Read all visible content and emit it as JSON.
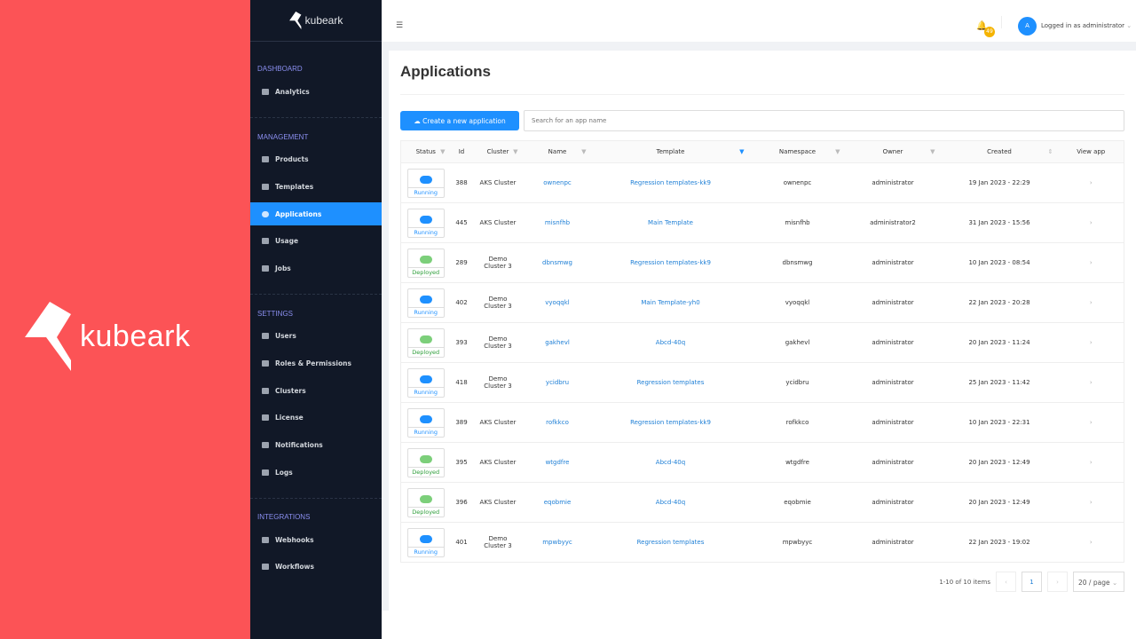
{
  "brand": {
    "name": "kubeark"
  },
  "sidebar": {
    "logo": "kubeark",
    "sections": [
      {
        "label": "DASHBOARD",
        "items": [
          {
            "label": "Analytics",
            "icon": "analytics-icon"
          }
        ]
      },
      {
        "label": "MANAGEMENT",
        "items": [
          {
            "label": "Products",
            "icon": "products-icon"
          },
          {
            "label": "Templates",
            "icon": "templates-icon"
          },
          {
            "label": "Applications",
            "icon": "cloud-icon",
            "active": true
          },
          {
            "label": "Usage",
            "icon": "chart-icon"
          },
          {
            "label": "Jobs",
            "icon": "jobs-icon"
          }
        ]
      },
      {
        "label": "SETTINGS",
        "items": [
          {
            "label": "Users",
            "icon": "users-icon"
          },
          {
            "label": "Roles & Permissions",
            "icon": "roles-icon"
          },
          {
            "label": "Clusters",
            "icon": "clusters-icon"
          },
          {
            "label": "License",
            "icon": "license-icon"
          },
          {
            "label": "Notifications",
            "icon": "bell-icon"
          },
          {
            "label": "Logs",
            "icon": "logs-icon"
          }
        ]
      },
      {
        "label": "INTEGRATIONS",
        "items": [
          {
            "label": "Webhooks",
            "icon": "webhooks-icon"
          },
          {
            "label": "Workflows",
            "icon": "gear-icon"
          }
        ]
      }
    ]
  },
  "header": {
    "notifications": "49",
    "avatar": "A",
    "user": "Logged in as administrator"
  },
  "page": {
    "title": "Applications",
    "create_label": "Create a new application",
    "search_placeholder": "Search for an app name"
  },
  "table": {
    "columns": [
      "Status",
      "Id",
      "Cluster",
      "Name",
      "Template",
      "Namespace",
      "Owner",
      "Created",
      "View app"
    ],
    "rows": [
      {
        "status": "Running",
        "id": "388",
        "cluster": "AKS Cluster",
        "name": "ownenpc",
        "template": "Regression templates-kk9",
        "namespace": "ownenpc",
        "owner": "administrator",
        "created": "19 Jan 2023 - 22:29"
      },
      {
        "status": "Running",
        "id": "445",
        "cluster": "AKS Cluster",
        "name": "misnfhb",
        "template": "Main Template",
        "namespace": "misnfhb",
        "owner": "administrator2",
        "created": "31 Jan 2023 - 15:56"
      },
      {
        "status": "Deployed",
        "id": "289",
        "cluster": "Demo Cluster 3",
        "name": "dbnsmwg",
        "template": "Regression templates-kk9",
        "namespace": "dbnsmwg",
        "owner": "administrator",
        "created": "10 Jan 2023 - 08:54"
      },
      {
        "status": "Running",
        "id": "402",
        "cluster": "Demo Cluster 3",
        "name": "vyoqqkl",
        "template": "Main Template-yh0",
        "namespace": "vyoqqkl",
        "owner": "administrator",
        "created": "22 Jan 2023 - 20:28"
      },
      {
        "status": "Deployed",
        "id": "393",
        "cluster": "Demo Cluster 3",
        "name": "gakhevl",
        "template": "Abcd-40q",
        "namespace": "gakhevl",
        "owner": "administrator",
        "created": "20 Jan 2023 - 11:24"
      },
      {
        "status": "Running",
        "id": "418",
        "cluster": "Demo Cluster 3",
        "name": "ycidbru",
        "template": "Regression templates",
        "namespace": "ycidbru",
        "owner": "administrator",
        "created": "25 Jan 2023 - 11:42"
      },
      {
        "status": "Running",
        "id": "389",
        "cluster": "AKS Cluster",
        "name": "rofkkco",
        "template": "Regression templates-kk9",
        "namespace": "rofkkco",
        "owner": "administrator",
        "created": "10 Jan 2023 - 22:31"
      },
      {
        "status": "Deployed",
        "id": "395",
        "cluster": "AKS Cluster",
        "name": "wtgdfre",
        "template": "Abcd-40q",
        "namespace": "wtgdfre",
        "owner": "administrator",
        "created": "20 Jan 2023 - 12:49"
      },
      {
        "status": "Deployed",
        "id": "396",
        "cluster": "AKS Cluster",
        "name": "eqobmie",
        "template": "Abcd-40q",
        "namespace": "eqobmie",
        "owner": "administrator",
        "created": "20 Jan 2023 - 12:49"
      },
      {
        "status": "Running",
        "id": "401",
        "cluster": "Demo Cluster 3",
        "name": "mpwbyyc",
        "template": "Regression templates",
        "namespace": "mpwbyyc",
        "owner": "administrator",
        "created": "22 Jan 2023 - 19:02"
      }
    ]
  },
  "pagination": {
    "summary": "1-10 of 10 items",
    "current": "1",
    "prev": "‹",
    "next": "›",
    "page_size": "20 / page"
  },
  "colors": {
    "brand": "#fc5356",
    "sidebar": "#111827",
    "accent": "#1e90ff",
    "running": "#1e90ff",
    "deployed": "#2e9e3a"
  }
}
